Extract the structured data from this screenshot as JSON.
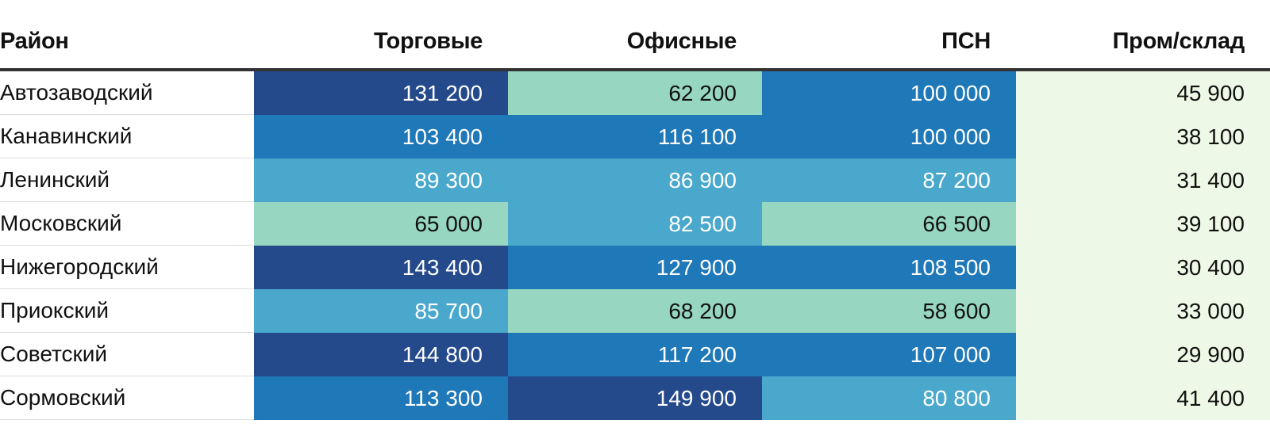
{
  "chart_data": {
    "type": "table",
    "columns": [
      "Район",
      "Торговые",
      "Офисные",
      "ПСН",
      "Пром/склад"
    ],
    "rows": [
      {
        "district": "Автозаводский",
        "values": [
          131200,
          62200,
          100000,
          45900
        ],
        "labels": [
          "131 200",
          "62 200",
          "100 000",
          "45 900"
        ]
      },
      {
        "district": "Канавинский",
        "values": [
          103400,
          116100,
          100000,
          38100
        ],
        "labels": [
          "103 400",
          "116 100",
          "100 000",
          "38 100"
        ]
      },
      {
        "district": "Ленинский",
        "values": [
          89300,
          86900,
          87200,
          31400
        ],
        "labels": [
          "89 300",
          "86 900",
          "87 200",
          "31 400"
        ]
      },
      {
        "district": "Московский",
        "values": [
          65000,
          82500,
          66500,
          39100
        ],
        "labels": [
          "65 000",
          "82 500",
          "66 500",
          "39 100"
        ]
      },
      {
        "district": "Нижегородский",
        "values": [
          143400,
          127900,
          108500,
          30400
        ],
        "labels": [
          "143 400",
          "127 900",
          "108 500",
          "30 400"
        ]
      },
      {
        "district": "Приокский",
        "values": [
          85700,
          68200,
          58600,
          33000
        ],
        "labels": [
          "85 700",
          "68 200",
          "58 600",
          "33 000"
        ]
      },
      {
        "district": "Советский",
        "values": [
          144800,
          117200,
          107000,
          29900
        ],
        "labels": [
          "144 800",
          "117 200",
          "107 000",
          "29 900"
        ]
      },
      {
        "district": "Сормовский",
        "values": [
          113300,
          149900,
          80800,
          41400
        ],
        "labels": [
          "113 300",
          "149 900",
          "80 800",
          "41 400"
        ]
      }
    ],
    "color_scale": {
      "thresholds": [
        50000,
        80000,
        100000,
        130000
      ],
      "colors": [
        "#eef8e6",
        "#97d6c0",
        "#4aa8cc",
        "#1f78b8",
        "#244a8c"
      ],
      "text_light": "#ffffff",
      "text_dark": "#111111"
    }
  }
}
